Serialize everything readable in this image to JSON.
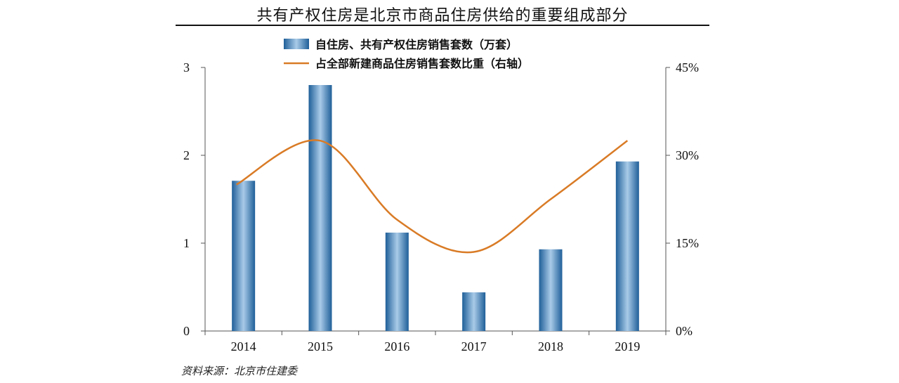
{
  "title": "共有产权住房是北京市商品住房供给的重要组成部分",
  "source": "资料来源：北京市住建委",
  "chart_data": {
    "type": "bar",
    "categories": [
      "2014",
      "2015",
      "2016",
      "2017",
      "2018",
      "2019"
    ],
    "series": [
      {
        "name": "自住房、共有产权住房销售套数（万套）",
        "type": "bar",
        "axis": "left",
        "values": [
          1.71,
          2.8,
          1.12,
          0.44,
          0.93,
          1.93
        ],
        "color": "#4a90c8"
      },
      {
        "name": "占全部新建商品住房销售套数比重（右轴）",
        "type": "line",
        "axis": "right",
        "values": [
          25,
          32.5,
          19,
          13.5,
          22.5,
          32.5
        ],
        "color": "#d97b26"
      }
    ],
    "ylim": [
      0,
      3
    ],
    "yticks": [
      "0",
      "1",
      "2",
      "3"
    ],
    "y2lim": [
      0,
      45
    ],
    "y2ticks": [
      "0%",
      "15%",
      "30%",
      "45%"
    ],
    "legend": "top"
  }
}
